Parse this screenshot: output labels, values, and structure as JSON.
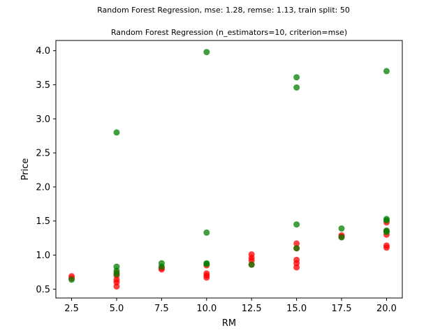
{
  "chart_data": {
    "type": "scatter",
    "suptitle": "Random Forest Regression, mse: 1.28, remse: 1.13, train split: 50",
    "title": "Random Forest Regression (n_estimators=10, criterion=mse)",
    "xlabel": "RM",
    "ylabel": "Price",
    "xlim": [
      1.625,
      20.875
    ],
    "ylim": [
      0.37,
      4.15
    ],
    "xticks": [
      2.5,
      5.0,
      7.5,
      10.0,
      12.5,
      15.0,
      17.5,
      20.0
    ],
    "xtick_labels": [
      "2.5",
      "5.0",
      "7.5",
      "10.0",
      "12.5",
      "15.0",
      "17.5",
      "20.0"
    ],
    "yticks": [
      0.5,
      1.0,
      1.5,
      2.0,
      2.5,
      3.0,
      3.5,
      4.0
    ],
    "ytick_labels": [
      "0.5",
      "1.0",
      "1.5",
      "2.0",
      "2.5",
      "3.0",
      "3.5",
      "4.0"
    ],
    "grid": false,
    "series": [
      {
        "color": "#ff0000",
        "alpha": 0.75,
        "points": [
          [
            2.5,
            0.69
          ],
          [
            2.5,
            0.66
          ],
          [
            5.0,
            0.54
          ],
          [
            5.0,
            0.6
          ],
          [
            5.0,
            0.64
          ],
          [
            5.0,
            0.7
          ],
          [
            5.0,
            0.74
          ],
          [
            7.5,
            0.79
          ],
          [
            7.5,
            0.81
          ],
          [
            10.0,
            0.67
          ],
          [
            10.0,
            0.7
          ],
          [
            10.0,
            0.73
          ],
          [
            10.0,
            0.85
          ],
          [
            12.5,
            0.86
          ],
          [
            12.5,
            0.92
          ],
          [
            12.5,
            0.96
          ],
          [
            12.5,
            1.01
          ],
          [
            15.0,
            0.82
          ],
          [
            15.0,
            0.88
          ],
          [
            15.0,
            0.93
          ],
          [
            15.0,
            1.1
          ],
          [
            15.0,
            1.17
          ],
          [
            17.5,
            1.27
          ],
          [
            17.5,
            1.29
          ],
          [
            20.0,
            1.11
          ],
          [
            20.0,
            1.14
          ],
          [
            20.0,
            1.3
          ],
          [
            20.0,
            1.35
          ],
          [
            20.0,
            1.48
          ]
        ]
      },
      {
        "color": "#008000",
        "alpha": 0.75,
        "points": [
          [
            2.5,
            0.64
          ],
          [
            5.0,
            0.72
          ],
          [
            5.0,
            0.77
          ],
          [
            5.0,
            0.83
          ],
          [
            5.0,
            2.8
          ],
          [
            7.5,
            0.83
          ],
          [
            7.5,
            0.88
          ],
          [
            10.0,
            0.87
          ],
          [
            10.0,
            0.88
          ],
          [
            10.0,
            1.33
          ],
          [
            10.0,
            3.98
          ],
          [
            12.5,
            0.86
          ],
          [
            15.0,
            1.1
          ],
          [
            15.0,
            1.45
          ],
          [
            15.0,
            3.46
          ],
          [
            15.0,
            3.61
          ],
          [
            17.5,
            1.26
          ],
          [
            17.5,
            1.39
          ],
          [
            20.0,
            1.34
          ],
          [
            20.0,
            1.36
          ],
          [
            20.0,
            1.51
          ],
          [
            20.0,
            1.53
          ],
          [
            20.0,
            3.7
          ]
        ]
      }
    ]
  }
}
